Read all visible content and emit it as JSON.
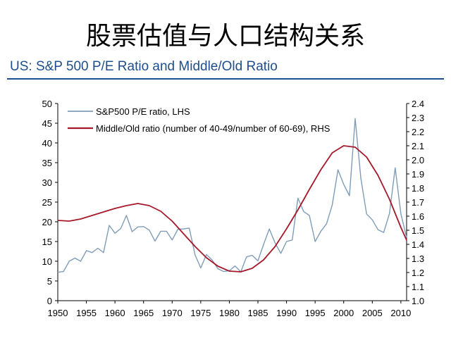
{
  "slide": {
    "title": "股票估值与人口结构关系",
    "subtitle": "US: S&P 500 P/E Ratio and Middle/Old Ratio"
  },
  "colors": {
    "pe_line": "#7f9db9",
    "ratio_line": "#a5192b",
    "accent": "#1f4e8c"
  },
  "chart_data": {
    "type": "line",
    "title": "",
    "xlabel": "",
    "ylabel_left": "",
    "ylabel_right": "",
    "x_ticks": [
      1950,
      1955,
      1960,
      1965,
      1970,
      1975,
      1980,
      1985,
      1990,
      1995,
      2000,
      2005,
      2010
    ],
    "xlim": [
      1950,
      2011
    ],
    "ylim_left": [
      0,
      50
    ],
    "yticks_left": [
      0,
      5,
      10,
      15,
      20,
      25,
      30,
      35,
      40,
      45,
      50
    ],
    "ylim_right": [
      1.0,
      2.4
    ],
    "yticks_right": [
      "1.0",
      "1.1",
      "1.2",
      "1.3",
      "1.4",
      "1.5",
      "1.6",
      "1.7",
      "1.8",
      "1.9",
      "2.0",
      "2.1",
      "2.2",
      "2.3",
      "2.4"
    ],
    "grid": false,
    "legend_position": "top-left",
    "series": [
      {
        "name": "S&P500 P/E ratio, LHS",
        "axis": "left",
        "x": [
          1950,
          1951,
          1952,
          1953,
          1954,
          1955,
          1956,
          1957,
          1958,
          1959,
          1960,
          1961,
          1962,
          1963,
          1964,
          1965,
          1966,
          1967,
          1968,
          1969,
          1970,
          1971,
          1972,
          1973,
          1974,
          1975,
          1976,
          1977,
          1978,
          1979,
          1980,
          1981,
          1982,
          1983,
          1984,
          1985,
          1986,
          1987,
          1988,
          1989,
          1990,
          1991,
          1992,
          1993,
          1994,
          1995,
          1996,
          1997,
          1998,
          1999,
          2000,
          2001,
          2002,
          2003,
          2004,
          2005,
          2006,
          2007,
          2008,
          2009,
          2010,
          2011
        ],
        "values": [
          7.2,
          7.4,
          10.0,
          10.8,
          10.0,
          12.7,
          12.2,
          13.3,
          12.2,
          19.1,
          17.1,
          18.3,
          21.6,
          17.5,
          18.7,
          18.8,
          17.9,
          15.1,
          17.6,
          17.6,
          15.4,
          18.1,
          18.2,
          18.4,
          11.6,
          8.3,
          11.7,
          10.3,
          8.1,
          7.4,
          7.6,
          8.8,
          7.3,
          11.1,
          11.5,
          10.1,
          14.3,
          18.2,
          14.6,
          12.0,
          15.0,
          15.4,
          26.0,
          22.6,
          21.6,
          15.0,
          17.6,
          19.5,
          24.3,
          33.2,
          29.5,
          26.6,
          46.2,
          31.0,
          22.0,
          20.5,
          18.0,
          17.3,
          22.1,
          33.7,
          22.0,
          16.0
        ]
      },
      {
        "name": "Middle/Old ratio (number of 40-49/number of 60-69), RHS",
        "axis": "right",
        "x": [
          1950,
          1952,
          1954,
          1956,
          1958,
          1960,
          1962,
          1964,
          1966,
          1968,
          1970,
          1972,
          1974,
          1976,
          1978,
          1980,
          1982,
          1984,
          1986,
          1988,
          1990,
          1992,
          1994,
          1996,
          1998,
          2000,
          2002,
          2004,
          2006,
          2008,
          2010,
          2011
        ],
        "values": [
          1.57,
          1.565,
          1.58,
          1.605,
          1.63,
          1.655,
          1.675,
          1.69,
          1.675,
          1.635,
          1.565,
          1.475,
          1.385,
          1.305,
          1.245,
          1.21,
          1.205,
          1.23,
          1.29,
          1.385,
          1.51,
          1.645,
          1.79,
          1.93,
          2.05,
          2.1,
          2.09,
          2.02,
          1.89,
          1.72,
          1.52,
          1.43
        ]
      }
    ]
  }
}
